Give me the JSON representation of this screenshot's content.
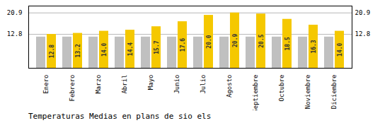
{
  "chart_data": {
    "type": "bar",
    "title": "Temperaturas Medias en plans de sio els",
    "categories": [
      "Enero",
      "Febrero",
      "Marzo",
      "Abril",
      "Mayo",
      "Junio",
      "Julio",
      "Agosto",
      "Septiembre",
      "Octubre",
      "Noviembre",
      "Diciembre"
    ],
    "series": [
      {
        "color": "#C0C0C0",
        "values": [
          11.8,
          11.8,
          11.8,
          11.8,
          11.8,
          11.8,
          11.8,
          11.8,
          11.8,
          11.8,
          11.8,
          11.8
        ]
      },
      {
        "color": "#F5C800",
        "values": [
          12.8,
          13.2,
          14.0,
          14.4,
          15.7,
          17.6,
          20.0,
          20.9,
          20.5,
          18.5,
          16.3,
          14.0
        ],
        "value_labels": [
          "12.8",
          "13.2",
          "14.0",
          "14.4",
          "15.7",
          "17.6",
          "20.0",
          "20.9",
          "20.5",
          "18.5",
          "16.3",
          "14.0"
        ],
        "data_labels": true
      }
    ],
    "ylim": [
      0,
      23.5
    ],
    "yticks": [
      12.8,
      20.9
    ],
    "y2lim": [
      0,
      23.5
    ],
    "y2ticks": [
      12.8,
      20.9
    ],
    "grid": true
  }
}
